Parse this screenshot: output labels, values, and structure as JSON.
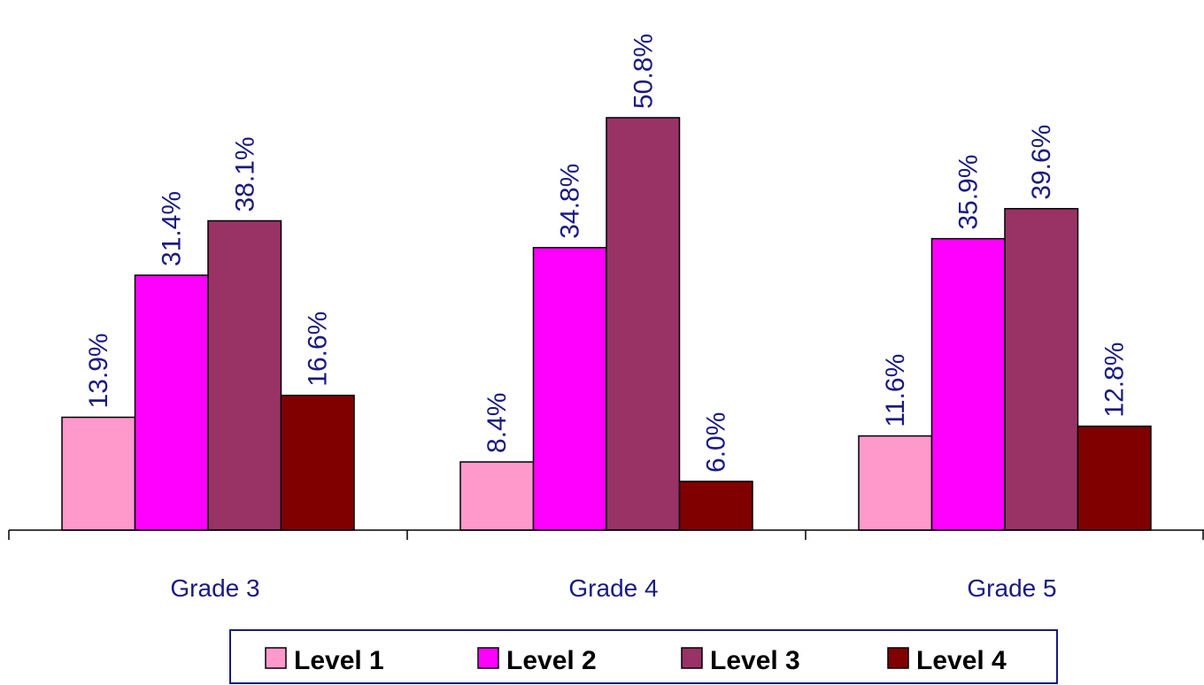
{
  "chart_data": {
    "type": "bar",
    "categories": [
      "Grade 3",
      "Grade 4",
      "Grade 5"
    ],
    "series": [
      {
        "name": "Level 1",
        "color": "#ff99cc",
        "values": [
          13.9,
          8.4,
          11.6
        ],
        "labels": [
          "13.9%",
          "8.4%",
          "11.6%"
        ]
      },
      {
        "name": "Level 2",
        "color": "#ff00ff",
        "values": [
          31.4,
          34.8,
          35.9
        ],
        "labels": [
          "31.4%",
          "34.8%",
          "35.9%"
        ]
      },
      {
        "name": "Level 3",
        "color": "#993366",
        "values": [
          38.1,
          50.8,
          39.6
        ],
        "labels": [
          "38.1%",
          "50.8%",
          "39.6%"
        ]
      },
      {
        "name": "Level 4",
        "color": "#800000",
        "values": [
          16.6,
          6.0,
          12.8
        ],
        "labels": [
          "16.6%",
          "6.0%",
          "12.8%"
        ]
      }
    ],
    "title": "",
    "xlabel": "",
    "ylabel": "",
    "ylim": [
      0,
      50.8
    ],
    "grid": false,
    "legend": "bottom"
  }
}
